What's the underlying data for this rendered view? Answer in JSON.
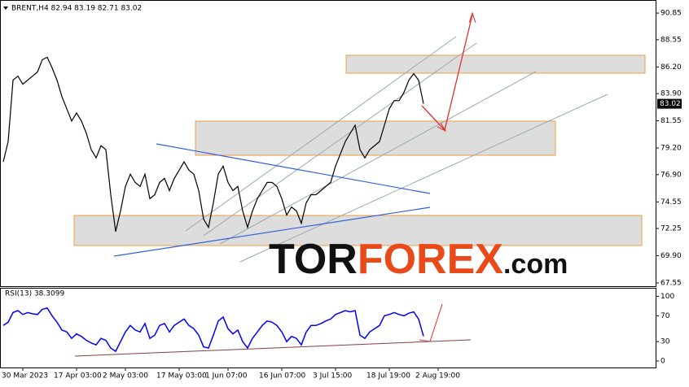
{
  "chart_data": [
    {
      "type": "line",
      "title": "BRENT,H4  82.94 83.19 82.71 83.02",
      "color": "#000000",
      "values": [
        78.0,
        79.76,
        85.06,
        85.41,
        84.71,
        85.06,
        85.41,
        85.77,
        86.83,
        87.04,
        86.12,
        85.06,
        83.65,
        82.59,
        81.53,
        82.23,
        81.53,
        80.47,
        79.06,
        78.35,
        79.41,
        79.06,
        75.17,
        71.99,
        73.76,
        75.88,
        76.94,
        76.23,
        75.88,
        76.94,
        74.82,
        75.17,
        76.23,
        76.58,
        75.52,
        76.58,
        77.29,
        78.0,
        77.29,
        76.94,
        75.52,
        73.05,
        72.35,
        74.47,
        76.94,
        77.64,
        76.23,
        75.52,
        75.88,
        73.76,
        72.35,
        73.76,
        74.82,
        75.52,
        76.23,
        76.23,
        75.88,
        74.82,
        73.41,
        74.11,
        73.76,
        72.7,
        74.47,
        75.17,
        75.17,
        75.52,
        75.88,
        76.23,
        77.64,
        78.7,
        79.76,
        80.47,
        81.17,
        79.06,
        78.35,
        79.06,
        79.41,
        79.76,
        81.17,
        82.59,
        83.29,
        83.29,
        84.0,
        85.06,
        85.62,
        85.06,
        83.02
      ],
      "last_price": 83.02,
      "ylim": [
        67.27,
        91.91
      ],
      "yticks": [
        67.55,
        {
          "value": 69.9,
          "label": "69.90"
        },
        72.25,
        74.55,
        {
          "value": 76.9,
          "label": "76.90"
        },
        {
          "value": 79.2,
          "label": "79.20"
        },
        81.55,
        {
          "value": 83.9,
          "label": "83.90"
        },
        {
          "value": 86.2,
          "label": "86.20"
        },
        88.55,
        90.85
      ],
      "xlim": [
        -0.67,
        133.5
      ],
      "xticks": [
        {
          "value": 4,
          "label": "30 Mar 2023"
        },
        {
          "value": 15,
          "label": "17 Apr 03:00"
        },
        {
          "value": 25,
          "label": "2 May 03:00"
        },
        {
          "value": 36,
          "label": "17 May 03:00"
        },
        {
          "value": 46,
          "label": "1 Jun 07:00"
        },
        {
          "value": 57,
          "label": "16 Jun 07:00"
        },
        {
          "value": 68,
          "label": "3 Jul 15:00"
        },
        {
          "value": 79,
          "label": "18 Jul 19:00"
        },
        {
          "value": 89,
          "label": "2 Aug 19:00"
        }
      ]
    },
    {
      "type": "line",
      "title": "RSI(13) 38.3099",
      "color": "#0000ff",
      "values": [
        55,
        60,
        75,
        78,
        72,
        75,
        73,
        72,
        80,
        82,
        70,
        60,
        48,
        45,
        35,
        42,
        38,
        32,
        28,
        25,
        35,
        32,
        20,
        15,
        30,
        45,
        55,
        48,
        45,
        58,
        35,
        40,
        55,
        58,
        45,
        55,
        60,
        65,
        55,
        50,
        40,
        22,
        20,
        40,
        62,
        68,
        50,
        42,
        48,
        30,
        20,
        35,
        45,
        55,
        62,
        60,
        55,
        45,
        30,
        38,
        35,
        25,
        45,
        55,
        55,
        58,
        62,
        65,
        72,
        75,
        78,
        76,
        78,
        40,
        35,
        45,
        50,
        55,
        70,
        72,
        75,
        72,
        70,
        74,
        76,
        65,
        38.3099
      ],
      "ylim": [
        -10,
        112
      ],
      "yticks": [
        0,
        30,
        70,
        100
      ]
    }
  ],
  "watermark": [
    "TOR",
    "FOREX",
    ".com"
  ]
}
